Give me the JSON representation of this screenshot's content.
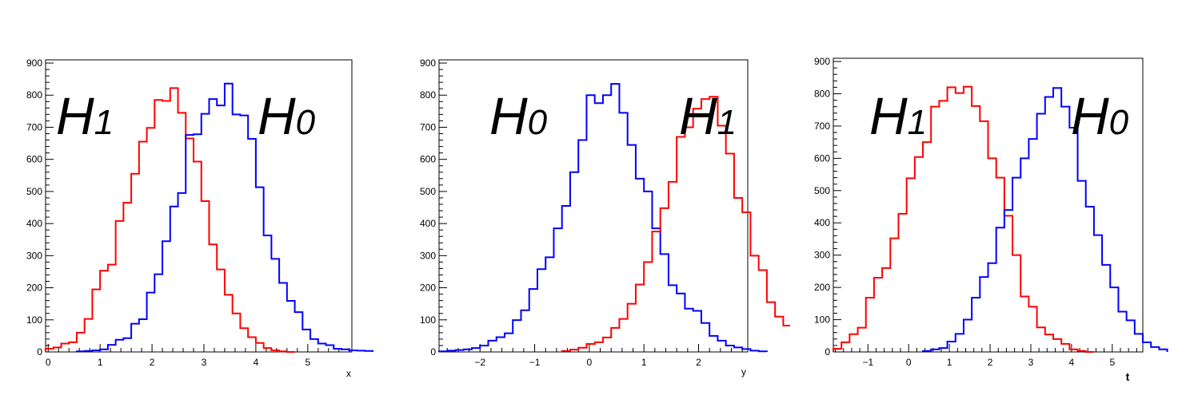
{
  "chart_data": [
    {
      "type": "step",
      "xlabel": "x",
      "xlim": [
        -0.05,
        5.85
      ],
      "ylim": [
        0,
        910
      ],
      "x_ticks": [
        "0",
        "1",
        "2",
        "3",
        "4",
        "5"
      ],
      "y_ticks": [
        "0",
        "100",
        "200",
        "300",
        "400",
        "500",
        "600",
        "700",
        "800",
        "900"
      ],
      "bin_width": 0.15,
      "series": [
        {
          "name": "H1",
          "color": "#ff0000",
          "bins_start": -0.05,
          "values": [
            10,
            14,
            26,
            30,
            60,
            103,
            195,
            253,
            272,
            408,
            465,
            555,
            655,
            698,
            785,
            782,
            822,
            745,
            665,
            593,
            470,
            335,
            257,
            178,
            120,
            74,
            46,
            28,
            12,
            5,
            2,
            0
          ]
        },
        {
          "name": "H0",
          "color": "#0000ff",
          "bins_start": 0.55,
          "values": [
            2,
            3,
            5,
            8,
            22,
            38,
            43,
            88,
            102,
            185,
            242,
            345,
            453,
            495,
            676,
            678,
            742,
            788,
            768,
            836,
            740,
            737,
            664,
            513,
            363,
            290,
            215,
            159,
            124,
            70,
            40,
            26,
            21,
            10,
            8,
            5,
            4,
            3
          ]
        }
      ],
      "labels": {
        "left": "H1",
        "right": "H0"
      }
    },
    {
      "type": "step",
      "xlabel": "y",
      "xlim": [
        -2.75,
        2.9
      ],
      "ylim": [
        0,
        910
      ],
      "x_ticks": [
        "−2",
        "−1",
        "0",
        "1",
        "2"
      ],
      "y_ticks": [
        "0",
        "100",
        "200",
        "300",
        "400",
        "500",
        "600",
        "700",
        "800",
        "900"
      ],
      "bin_width": 0.15,
      "series": [
        {
          "name": "H0",
          "color": "#0000ff",
          "bins_start": -2.75,
          "values": [
            2,
            4,
            6,
            8,
            12,
            20,
            35,
            46,
            58,
            99,
            130,
            196,
            258,
            295,
            385,
            455,
            560,
            660,
            800,
            775,
            800,
            835,
            745,
            645,
            540,
            500,
            385,
            305,
            208,
            182,
            135,
            128,
            90,
            50,
            35,
            20,
            14,
            9,
            4,
            2
          ]
        },
        {
          "name": "H1",
          "color": "#ff0000",
          "bins_start": -0.5,
          "values": [
            3,
            7,
            13,
            25,
            30,
            45,
            75,
            103,
            150,
            210,
            280,
            375,
            448,
            530,
            670,
            700,
            758,
            788,
            795,
            705,
            618,
            480,
            435,
            300,
            255,
            155,
            110,
            82,
            50,
            22,
            12,
            6,
            2
          ]
        }
      ],
      "labels": {
        "left": "H0",
        "right": "H1"
      }
    },
    {
      "type": "step",
      "xlabel": "t",
      "xlim": [
        -1.85,
        5.75
      ],
      "ylim": [
        0,
        910
      ],
      "x_ticks": [
        "−1",
        "0",
        "1",
        "2",
        "3",
        "4",
        "5"
      ],
      "y_ticks": [
        "0",
        "100",
        "200",
        "300",
        "400",
        "500",
        "600",
        "700",
        "800",
        "900"
      ],
      "bin_width": 0.2,
      "series": [
        {
          "name": "H1",
          "color": "#ff0000",
          "bins_start": -1.85,
          "values": [
            10,
            30,
            55,
            75,
            168,
            230,
            260,
            352,
            428,
            538,
            604,
            650,
            760,
            778,
            820,
            802,
            822,
            762,
            715,
            600,
            540,
            422,
            300,
            172,
            140,
            76,
            54,
            40,
            25,
            8,
            3,
            0
          ]
        },
        {
          "name": "H0",
          "color": "#0000ff",
          "bins_start": 0.35,
          "values": [
            3,
            8,
            12,
            32,
            56,
            100,
            168,
            232,
            275,
            385,
            440,
            540,
            600,
            660,
            738,
            790,
            818,
            760,
            695,
            530,
            450,
            362,
            270,
            200,
            125,
            98,
            56,
            30,
            15,
            8
          ]
        }
      ],
      "labels": {
        "left": "H1",
        "right": "H0"
      }
    }
  ]
}
